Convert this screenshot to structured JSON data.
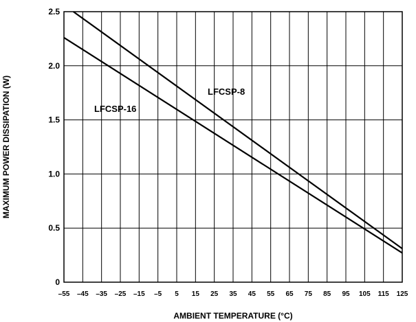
{
  "chart_data": {
    "type": "line",
    "xlabel": "AMBIENT TEMPERATURE (°C)",
    "ylabel": "MAXIMUM POWER DISSIPATION (W)",
    "xlim": [
      -55,
      125
    ],
    "ylim": [
      0,
      2.5
    ],
    "x_ticks": [
      "–55",
      "–45",
      "–35",
      "–25",
      "–15",
      "–5",
      "5",
      "15",
      "25",
      "35",
      "45",
      "55",
      "65",
      "75",
      "85",
      "95",
      "105",
      "115",
      "125"
    ],
    "y_ticks": [
      "0",
      "0.5",
      "1.0",
      "1.5",
      "2.0",
      "2.5"
    ],
    "grid": true,
    "series": [
      {
        "name": "LFCSP-8",
        "x": [
          -50,
          125
        ],
        "y": [
          2.5,
          0.31
        ]
      },
      {
        "name": "LFCSP-16",
        "x": [
          -55,
          125
        ],
        "y": [
          2.26,
          0.27
        ]
      }
    ]
  }
}
